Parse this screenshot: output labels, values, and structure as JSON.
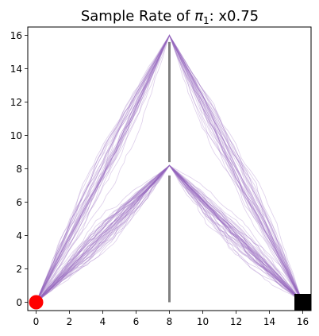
{
  "chart_data": {
    "type": "line",
    "title_main": "Sample Rate of ",
    "title_symbol": "π",
    "title_subscript": "1",
    "title_suffix": ": x0.75",
    "xlim": [
      -0.5,
      16.5
    ],
    "ylim": [
      -0.5,
      16.5
    ],
    "xticks": [
      0,
      2,
      4,
      6,
      8,
      10,
      12,
      14,
      16
    ],
    "yticks": [
      0,
      2,
      4,
      6,
      8,
      10,
      12,
      14,
      16
    ],
    "grid": false,
    "colors": {
      "trajectory": "#9467bd",
      "wall": "#808080",
      "start": "#ff0000",
      "goal": "#000000"
    },
    "start": {
      "x": 0,
      "y": 0
    },
    "goal": {
      "x": 16,
      "y": 0
    },
    "wall_segments": [
      {
        "x": 8,
        "y0": 0,
        "y1": 7.6
      },
      {
        "x": 8,
        "y0": 8.4,
        "y1": 15.6
      }
    ],
    "route_series": [
      {
        "waypoints": [
          [
            0,
            0
          ],
          [
            8,
            16
          ],
          [
            16,
            0
          ]
        ],
        "count": 32
      },
      {
        "waypoints": [
          [
            0,
            0
          ],
          [
            8,
            8.2
          ],
          [
            16,
            0
          ]
        ],
        "count": 45
      }
    ]
  }
}
